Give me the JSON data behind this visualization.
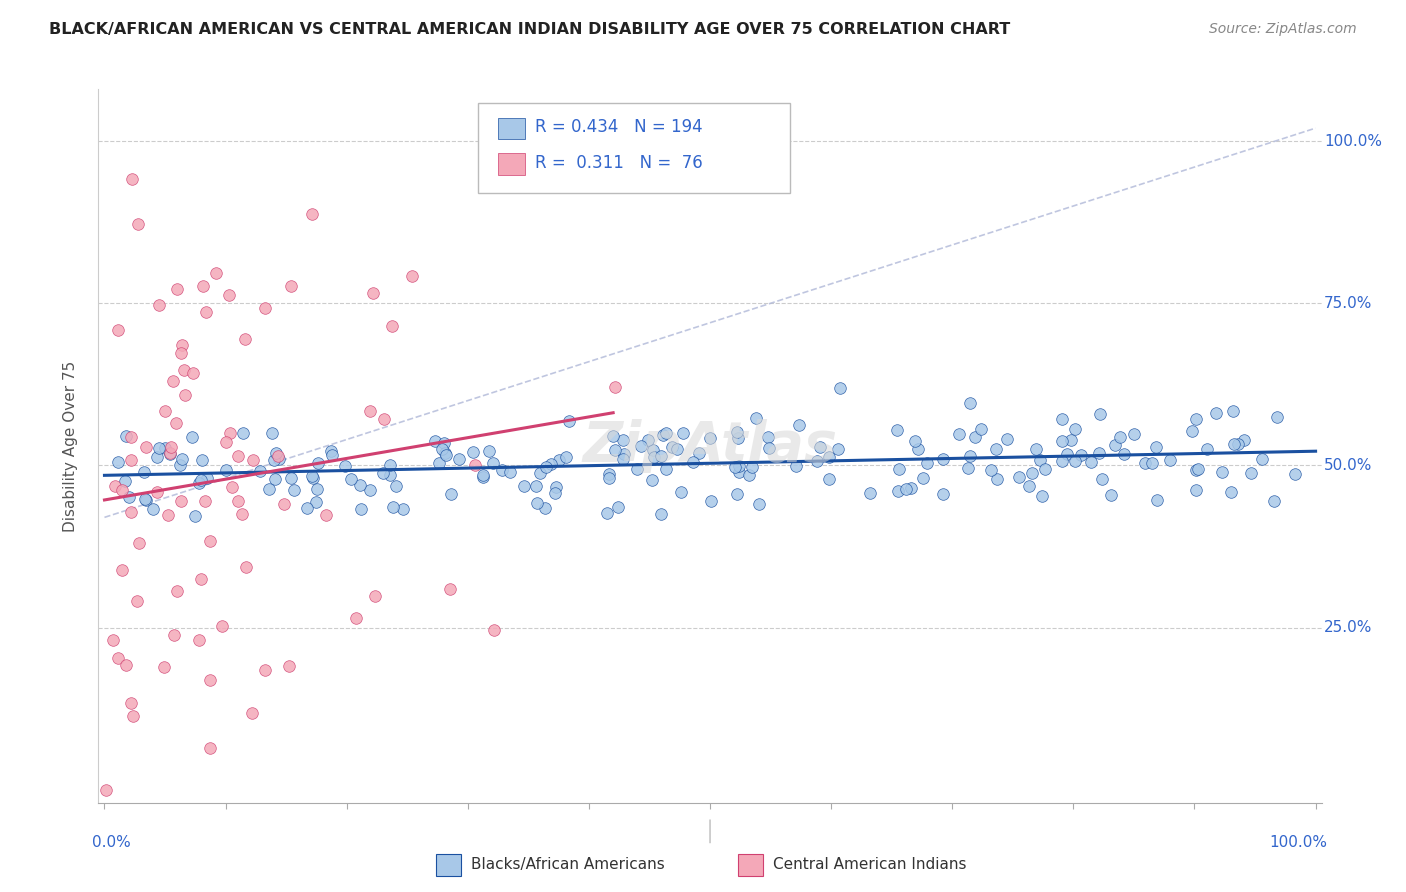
{
  "title": "BLACK/AFRICAN AMERICAN VS CENTRAL AMERICAN INDIAN DISABILITY AGE OVER 75 CORRELATION CHART",
  "source": "Source: ZipAtlas.com",
  "ylabel": "Disability Age Over 75",
  "blue_R": 0.434,
  "blue_N": 194,
  "pink_R": 0.311,
  "pink_N": 76,
  "blue_color": "#a8c8e8",
  "pink_color": "#f4a8b8",
  "blue_line_color": "#1a50a0",
  "pink_line_color": "#d04070",
  "blue_dashed_color": "#b0b8d8",
  "axis_color": "#3366cc",
  "title_color": "#222222",
  "source_color": "#888888",
  "grid_color": "#cccccc",
  "watermark": "ZipAtlas",
  "legend_label_blue": "Blacks/African Americans",
  "legend_label_pink": "Central American Indians"
}
